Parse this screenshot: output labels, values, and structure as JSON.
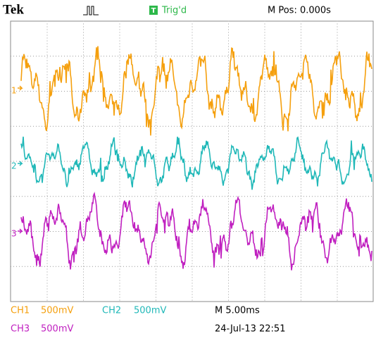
{
  "header": {
    "brand": "Tek",
    "trigger_icon": "T",
    "trigger_status": "Trig'd",
    "position": "M Pos: 0.000s"
  },
  "channels": [
    {
      "label": "CH1",
      "scale": "500mV",
      "marker": "1"
    },
    {
      "label": "CH2",
      "scale": "500mV",
      "marker": "2"
    },
    {
      "label": "CH3",
      "scale": "500mV",
      "marker": "3"
    }
  ],
  "timebase": "M 5.00ms",
  "datetime": "24-Jul-13 22:51"
}
